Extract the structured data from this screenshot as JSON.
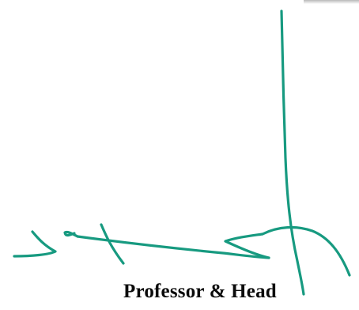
{
  "document": {
    "designation": "Professor & Head",
    "signature_icon": "handwritten-signature",
    "ink_color": "#179a80"
  }
}
